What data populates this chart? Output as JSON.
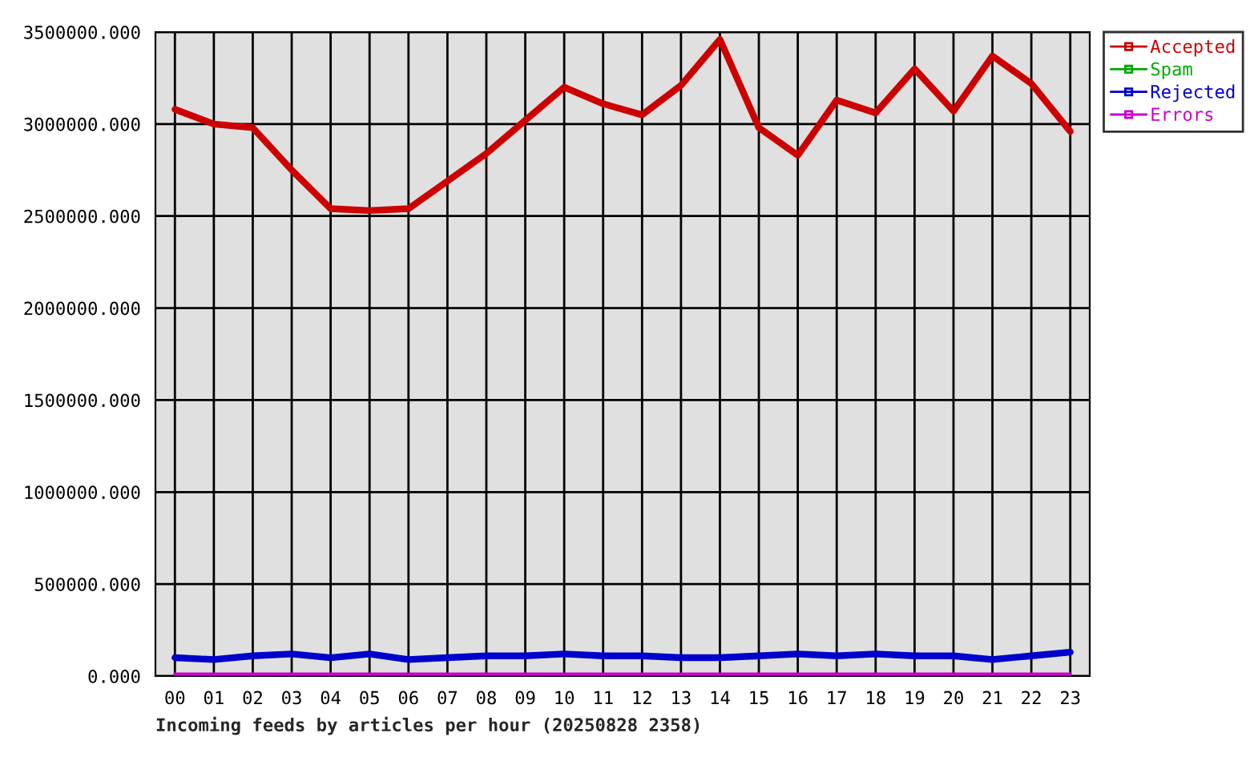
{
  "chart_data": {
    "type": "line",
    "xlabel": "Incoming feeds by articles per hour (20250828 2358)",
    "categories": [
      "00",
      "01",
      "02",
      "03",
      "04",
      "05",
      "06",
      "07",
      "08",
      "09",
      "10",
      "11",
      "12",
      "13",
      "14",
      "15",
      "16",
      "17",
      "18",
      "19",
      "20",
      "21",
      "22",
      "23"
    ],
    "series": [
      {
        "name": "Accepted",
        "color": "#cc0000",
        "values": [
          3080000,
          3000000,
          2980000,
          2750000,
          2540000,
          2530000,
          2540000,
          2690000,
          2840000,
          3020000,
          3200000,
          3110000,
          3050000,
          3210000,
          3460000,
          2980000,
          2830000,
          3130000,
          3060000,
          3300000,
          3070000,
          3370000,
          3220000,
          2960000
        ]
      },
      {
        "name": "Spam",
        "color": "#00aa00",
        "values": [
          null,
          null,
          null,
          null,
          null,
          null,
          null,
          null,
          null,
          null,
          null,
          null,
          null,
          null,
          null,
          null,
          null,
          null,
          null,
          null,
          null,
          null,
          null,
          null
        ]
      },
      {
        "name": "Rejected",
        "color": "#0000cc",
        "values": [
          100000,
          90000,
          110000,
          120000,
          100000,
          120000,
          90000,
          100000,
          110000,
          110000,
          120000,
          110000,
          110000,
          100000,
          100000,
          110000,
          120000,
          110000,
          120000,
          110000,
          110000,
          90000,
          110000,
          130000
        ]
      },
      {
        "name": "Errors",
        "color": "#cc00cc",
        "values": [
          10000,
          10000,
          10000,
          10000,
          10000,
          10000,
          10000,
          10000,
          10000,
          10000,
          10000,
          10000,
          10000,
          10000,
          10000,
          10000,
          10000,
          10000,
          10000,
          10000,
          10000,
          10000,
          10000,
          10000
        ]
      }
    ],
    "ylim": [
      0,
      3500000
    ],
    "yticks": [
      {
        "value": 0,
        "label": "0.000"
      },
      {
        "value": 500000,
        "label": "500000.000"
      },
      {
        "value": 1000000,
        "label": "1000000.000"
      },
      {
        "value": 1500000,
        "label": "1500000.000"
      },
      {
        "value": 2000000,
        "label": "2000000.000"
      },
      {
        "value": 2500000,
        "label": "2500000.000"
      },
      {
        "value": 3000000,
        "label": "3000000.000"
      },
      {
        "value": 3500000,
        "label": "3500000.000"
      }
    ],
    "grid": true,
    "legend": "top right",
    "line_style": "solid"
  }
}
